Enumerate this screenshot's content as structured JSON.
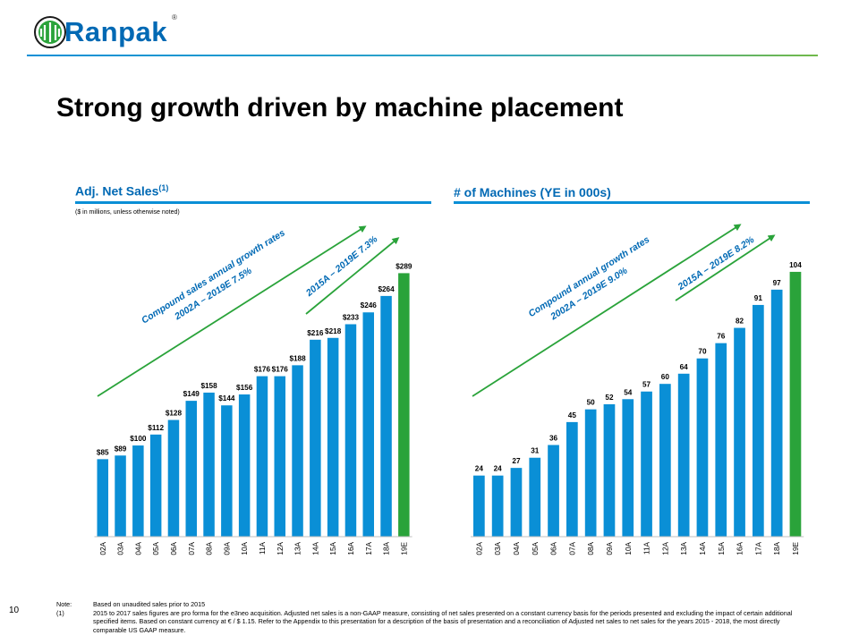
{
  "header": {
    "brand": "Ranpak",
    "registered_mark": "®",
    "title": "Strong growth driven by machine placement"
  },
  "colors": {
    "bar_blue": "#0a8fd6",
    "bar_green": "#2aa33a",
    "arrow_green": "#2aa33a",
    "heading_blue": "#0069b4"
  },
  "left_section": {
    "title": "Adj.  Net Sales",
    "title_sup": "(1)",
    "subnote": "($ in millions, unless otherwise noted)"
  },
  "right_section": {
    "title": "# of Machines  (YE in 000s)"
  },
  "chart_data": [
    {
      "type": "bar",
      "title": "Adj. Net Sales",
      "categories": [
        "02A",
        "03A",
        "04A",
        "05A",
        "06A",
        "07A",
        "08A",
        "09A",
        "10A",
        "11A",
        "12A",
        "13A",
        "14A",
        "15A",
        "16A",
        "17A",
        "18A",
        "19E"
      ],
      "values": [
        85,
        89,
        100,
        112,
        128,
        149,
        158,
        144,
        156,
        176,
        176,
        188,
        216,
        218,
        233,
        246,
        264,
        289
      ],
      "value_labels": [
        "$85",
        "$89",
        "$100",
        "$112",
        "$128",
        "$149",
        "$158",
        "$144",
        "$156",
        "$176",
        "$176",
        "$188",
        "$216",
        "$218",
        "$233",
        "$246",
        "$264",
        "$289"
      ],
      "highlight_last": true,
      "ylim": [
        0,
        310
      ],
      "annotations": [
        {
          "line1": "Compound sales annual growth rates",
          "line2": "2002A – 2019E 7.5%"
        },
        {
          "line1": "2015A – 2019E 7.3%"
        }
      ]
    },
    {
      "type": "bar",
      "title": "# of Machines (YE in 000s)",
      "categories": [
        "02A",
        "03A",
        "04A",
        "05A",
        "06A",
        "07A",
        "08A",
        "09A",
        "10A",
        "11A",
        "12A",
        "13A",
        "14A",
        "15A",
        "16A",
        "17A",
        "18A",
        "19E"
      ],
      "values": [
        24,
        24,
        27,
        31,
        36,
        45,
        50,
        52,
        54,
        57,
        60,
        64,
        70,
        76,
        82,
        91,
        97,
        104
      ],
      "value_labels": [
        "24",
        "24",
        "27",
        "31",
        "36",
        "45",
        "50",
        "52",
        "54",
        "57",
        "60",
        "64",
        "70",
        "76",
        "82",
        "91",
        "97",
        "104"
      ],
      "highlight_last": true,
      "ylim": [
        0,
        111
      ],
      "annotations": [
        {
          "line1": "Compound annual growth rates",
          "line2": "2002A – 2019E 9.0%"
        },
        {
          "line1": "2015A – 2019E 8.2%"
        }
      ]
    }
  ],
  "footer": {
    "page_number": "10",
    "notes": [
      {
        "key": "Note:",
        "text": "Based on unaudited sales prior to 2015"
      },
      {
        "key": "(1)",
        "text": "2015 to 2017 sales figures are pro forma for the e3neo acquisition. Adjusted net sales is a non-GAAP measure, consisting of net sales presented on a constant currency basis for the periods presented and excluding the impact of certain additional specified items. Based on constant currency at € / $ 1.15. Refer to the Appendix to this presentation for a description of the basis of presentation and a reconciliation of Adjusted net sales to net sales for the years 2015 - 2018, the most directly comparable US GAAP measure."
      }
    ]
  }
}
